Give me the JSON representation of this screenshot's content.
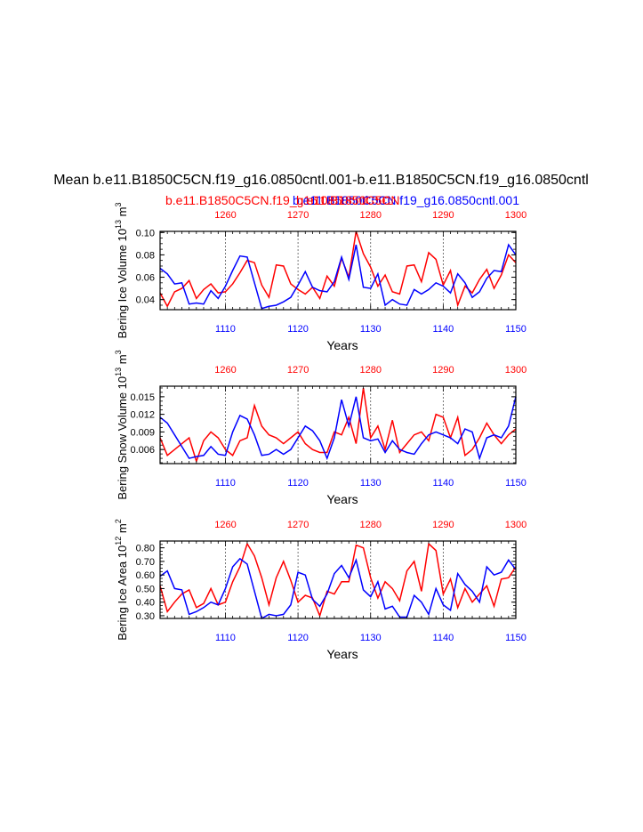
{
  "header": {
    "title": "Mean b.e11.B1850C5CN.f19_g16.0850cntl.001-b.e11.B1850C5CN.f19_g16.0850cntl",
    "legend_red": "b.e11.B1850C5CN.f19_g16.0850cntl.001",
    "legend_blue": "b.e11.B1850C5CN.f19_g16.0850cntl.001",
    "overlap": "b.e11.B1850C5CN"
  },
  "colors": {
    "red": "#ff0000",
    "blue": "#0000ff",
    "axis": "#000000"
  },
  "chart_data": [
    {
      "type": "line",
      "ylabel_main": "Bering Ice Volume 10",
      "ylabel_exp": "13",
      "ylabel_unit": " m",
      "ylabel_unit_exp": "3",
      "xlabel": "Years",
      "ylim": [
        0.031,
        0.101
      ],
      "yticks": [
        0.04,
        0.06,
        0.08,
        0.1
      ],
      "ytick_labels": [
        "0.04",
        "0.06",
        "0.08",
        "0.10"
      ],
      "x_bottom": {
        "range": [
          1101,
          1150
        ],
        "ticks": [
          1110,
          1120,
          1130,
          1140,
          1150
        ],
        "labels": [
          "1110",
          "1120",
          "1130",
          "1140",
          "1150"
        ]
      },
      "x_top": {
        "range": [
          1251,
          1300
        ],
        "ticks": [
          1260,
          1270,
          1280,
          1290,
          1300
        ],
        "labels": [
          "1260",
          "1270",
          "1280",
          "1290",
          "1300"
        ]
      },
      "series": [
        {
          "name": "b.e11.B1850C5CN.f19_g16.0850cntl.001 (1251-1300)",
          "color": "red",
          "values": [
            0.046,
            0.034,
            0.047,
            0.05,
            0.057,
            0.041,
            0.049,
            0.054,
            0.046,
            0.047,
            0.054,
            0.064,
            0.075,
            0.073,
            0.053,
            0.042,
            0.071,
            0.07,
            0.054,
            0.049,
            0.045,
            0.051,
            0.041,
            0.061,
            0.052,
            0.077,
            0.06,
            0.101,
            0.081,
            0.069,
            0.052,
            0.062,
            0.047,
            0.045,
            0.07,
            0.071,
            0.056,
            0.082,
            0.076,
            0.053,
            0.066,
            0.035,
            0.052,
            0.046,
            0.058,
            0.067,
            0.05,
            0.062,
            0.08,
            0.073
          ]
        },
        {
          "name": "b.e11.B1850C5CN.f19_g16.0850cntl.001 (1101-1150)",
          "color": "blue",
          "values": [
            0.068,
            0.063,
            0.054,
            0.055,
            0.036,
            0.037,
            0.036,
            0.048,
            0.041,
            0.052,
            0.066,
            0.079,
            0.078,
            0.055,
            0.032,
            0.034,
            0.035,
            0.038,
            0.042,
            0.053,
            0.065,
            0.051,
            0.048,
            0.047,
            0.056,
            0.078,
            0.058,
            0.089,
            0.051,
            0.05,
            0.063,
            0.035,
            0.04,
            0.036,
            0.035,
            0.049,
            0.045,
            0.049,
            0.055,
            0.052,
            0.046,
            0.063,
            0.055,
            0.042,
            0.047,
            0.059,
            0.066,
            0.065,
            0.089,
            0.08
          ]
        }
      ]
    },
    {
      "type": "line",
      "ylabel_main": "Bering Snow Volume 10",
      "ylabel_exp": "13",
      "ylabel_unit": " m",
      "ylabel_unit_exp": "3",
      "xlabel": "Years",
      "ylim": [
        0.0036,
        0.0168
      ],
      "yticks": [
        0.006,
        0.009,
        0.012,
        0.015
      ],
      "ytick_labels": [
        "0.006",
        "0.009",
        "0.012",
        "0.015"
      ],
      "x_bottom": {
        "range": [
          1101,
          1150
        ],
        "ticks": [
          1110,
          1120,
          1130,
          1140,
          1150
        ],
        "labels": [
          "1110",
          "1120",
          "1130",
          "1140",
          "1150"
        ]
      },
      "x_top": {
        "range": [
          1251,
          1300
        ],
        "ticks": [
          1260,
          1270,
          1280,
          1290,
          1300
        ],
        "labels": [
          "1260",
          "1270",
          "1280",
          "1290",
          "1300"
        ]
      },
      "series": [
        {
          "name": "b.e11.B1850C5CN.f19_g16.0850cntl.001 (1251-1300)",
          "color": "red",
          "values": [
            0.008,
            0.005,
            0.006,
            0.007,
            0.008,
            0.004,
            0.0075,
            0.009,
            0.008,
            0.006,
            0.005,
            0.0075,
            0.008,
            0.0135,
            0.01,
            0.0085,
            0.008,
            0.007,
            0.008,
            0.009,
            0.007,
            0.006,
            0.0055,
            0.0055,
            0.009,
            0.0085,
            0.0115,
            0.007,
            0.0165,
            0.008,
            0.01,
            0.006,
            0.011,
            0.0055,
            0.007,
            0.0085,
            0.009,
            0.0075,
            0.012,
            0.0115,
            0.008,
            0.0115,
            0.005,
            0.006,
            0.008,
            0.0105,
            0.0085,
            0.007,
            0.0085,
            0.0095
          ]
        },
        {
          "name": "b.e11.B1850C5CN.f19_g16.0850cntl.001 (1101-1150)",
          "color": "blue",
          "values": [
            0.0115,
            0.0105,
            0.0085,
            0.0065,
            0.0045,
            0.0048,
            0.005,
            0.0065,
            0.0052,
            0.005,
            0.009,
            0.0118,
            0.0112,
            0.0085,
            0.005,
            0.0052,
            0.006,
            0.0052,
            0.006,
            0.008,
            0.01,
            0.0092,
            0.0075,
            0.0045,
            0.008,
            0.0145,
            0.01,
            0.015,
            0.008,
            0.0075,
            0.0078,
            0.0055,
            0.0075,
            0.006,
            0.0055,
            0.0052,
            0.007,
            0.0085,
            0.009,
            0.0085,
            0.008,
            0.007,
            0.0095,
            0.009,
            0.0045,
            0.008,
            0.0085,
            0.008,
            0.01,
            0.015
          ]
        }
      ]
    },
    {
      "type": "line",
      "ylabel_main": "Bering Ice Area 10",
      "ylabel_exp": "12",
      "ylabel_unit": " m",
      "ylabel_unit_exp": "2",
      "xlabel": "Years",
      "ylim": [
        0.28,
        0.85
      ],
      "yticks": [
        0.3,
        0.4,
        0.5,
        0.6,
        0.7,
        0.8
      ],
      "ytick_labels": [
        "0.30",
        "0.40",
        "0.50",
        "0.60",
        "0.70",
        "0.80"
      ],
      "x_bottom": {
        "range": [
          1101,
          1150
        ],
        "ticks": [
          1110,
          1120,
          1130,
          1140,
          1150
        ],
        "labels": [
          "1110",
          "1120",
          "1130",
          "1140",
          "1150"
        ]
      },
      "x_top": {
        "range": [
          1251,
          1300
        ],
        "ticks": [
          1260,
          1270,
          1280,
          1290,
          1300
        ],
        "labels": [
          "1260",
          "1270",
          "1280",
          "1290",
          "1300"
        ]
      },
      "series": [
        {
          "name": "b.e11.B1850C5CN.f19_g16.0850cntl.001 (1251-1300)",
          "color": "red",
          "values": [
            0.52,
            0.33,
            0.4,
            0.46,
            0.49,
            0.36,
            0.39,
            0.5,
            0.38,
            0.4,
            0.55,
            0.66,
            0.83,
            0.74,
            0.58,
            0.38,
            0.58,
            0.7,
            0.56,
            0.4,
            0.45,
            0.43,
            0.3,
            0.48,
            0.46,
            0.55,
            0.55,
            0.82,
            0.8,
            0.58,
            0.43,
            0.55,
            0.5,
            0.41,
            0.63,
            0.7,
            0.48,
            0.83,
            0.78,
            0.46,
            0.57,
            0.36,
            0.5,
            0.4,
            0.46,
            0.52,
            0.37,
            0.57,
            0.58,
            0.66
          ]
        },
        {
          "name": "b.e11.B1850C5CN.f19_g16.0850cntl.001 (1101-1150)",
          "color": "blue",
          "values": [
            0.59,
            0.63,
            0.5,
            0.49,
            0.31,
            0.33,
            0.36,
            0.4,
            0.38,
            0.5,
            0.66,
            0.72,
            0.68,
            0.48,
            0.28,
            0.31,
            0.3,
            0.31,
            0.38,
            0.62,
            0.6,
            0.42,
            0.37,
            0.46,
            0.61,
            0.67,
            0.58,
            0.71,
            0.49,
            0.44,
            0.55,
            0.35,
            0.37,
            0.29,
            0.29,
            0.45,
            0.4,
            0.31,
            0.5,
            0.38,
            0.34,
            0.61,
            0.53,
            0.48,
            0.4,
            0.66,
            0.6,
            0.62,
            0.71,
            0.64
          ]
        }
      ]
    }
  ]
}
